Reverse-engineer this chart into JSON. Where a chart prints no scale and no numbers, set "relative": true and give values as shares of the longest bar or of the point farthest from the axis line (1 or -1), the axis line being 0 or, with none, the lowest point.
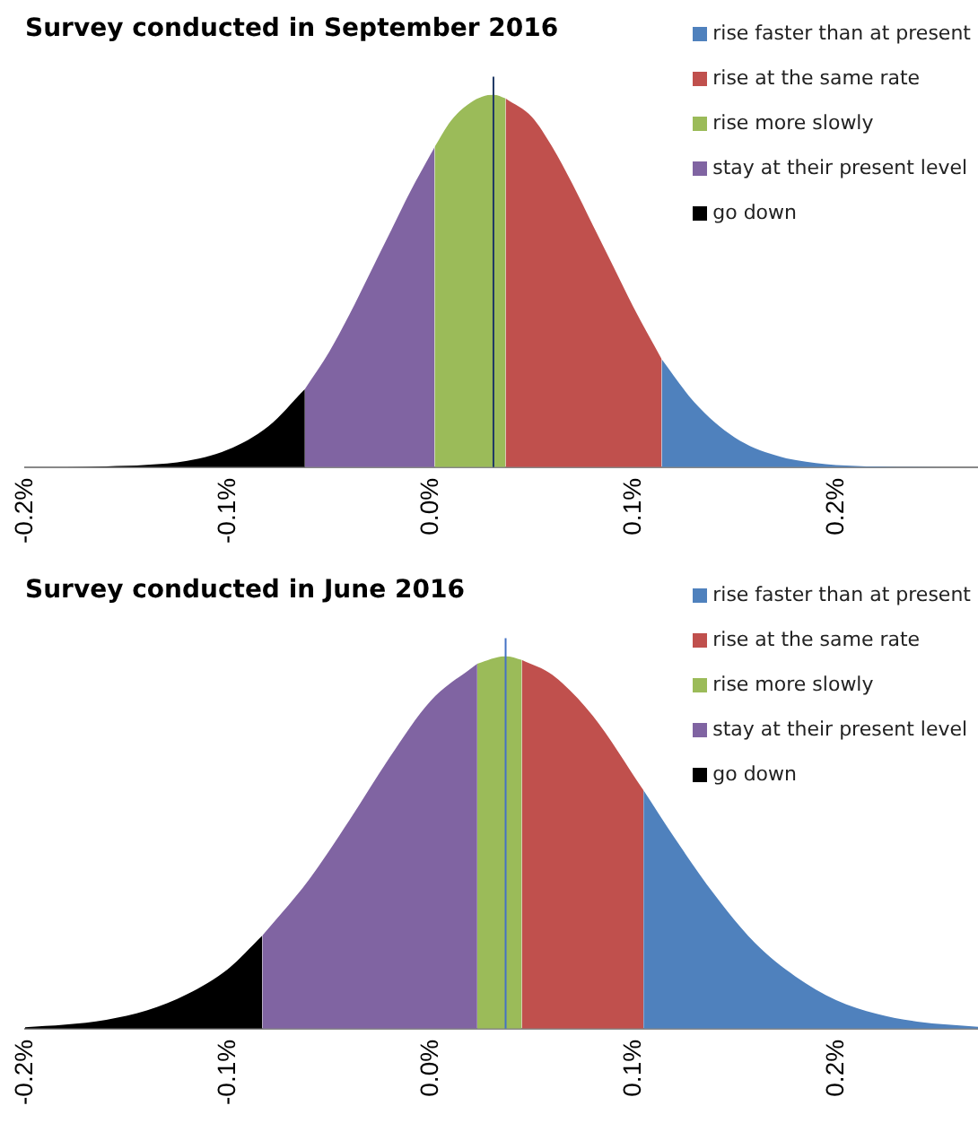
{
  "chart_data": [
    {
      "type": "area",
      "title": "Survey conducted in September 2016",
      "relative": true,
      "legend": "top right",
      "marker": "none",
      "grid": false,
      "xlim": [
        -0.2,
        0.27
      ],
      "xticks": [
        {
          "value": -0.2,
          "label": "-0.2%"
        },
        {
          "value": -0.1,
          "label": "-0.1%"
        },
        {
          "value": 0,
          "label": "0.0%"
        },
        {
          "value": 0.1,
          "label": "0.1%"
        },
        {
          "value": 0.2,
          "label": "0.2%"
        }
      ],
      "ref_lines": [
        {
          "axis": "x",
          "value": 0.031,
          "color": "#1f3864"
        }
      ],
      "series": [
        {
          "name": "rise faster than at present",
          "color": "#4f81bd",
          "x": [
            0.114,
            0.13,
            0.15,
            0.17,
            0.19,
            0.21,
            0.23,
            0.27
          ],
          "values": [
            0.29,
            0.175,
            0.08,
            0.032,
            0.011,
            0.003,
            0.001,
            0
          ]
        },
        {
          "name": "rise at the same rate",
          "color": "#c0504d",
          "x": [
            0.037,
            0.05,
            0.06,
            0.07,
            0.08,
            0.09,
            0.1,
            0.114
          ],
          "values": [
            0.99,
            0.94,
            0.86,
            0.76,
            0.65,
            0.54,
            0.43,
            0.29
          ]
        },
        {
          "name": "rise more slowly",
          "color": "#9bbb59",
          "x": [
            0.002,
            0.01,
            0.02,
            0.031,
            0.037
          ],
          "values": [
            0.86,
            0.93,
            0.98,
            1,
            0.99
          ]
        },
        {
          "name": "stay at their present level",
          "color": "#8064a2",
          "x": [
            -0.062,
            -0.05,
            -0.04,
            -0.03,
            -0.02,
            -0.01,
            0,
            0.002
          ],
          "values": [
            0.21,
            0.31,
            0.41,
            0.52,
            0.63,
            0.74,
            0.84,
            0.86
          ]
        },
        {
          "name": "go down",
          "color": "#000000",
          "x": [
            -0.2,
            -0.18,
            -0.16,
            -0.14,
            -0.12,
            -0.1,
            -0.08,
            -0.062
          ],
          "values": [
            0,
            0,
            0.002,
            0.006,
            0.017,
            0.047,
            0.11,
            0.21
          ]
        }
      ]
    },
    {
      "type": "area",
      "title": "Survey conducted in June 2016",
      "relative": true,
      "legend": "top right",
      "marker": "none",
      "grid": false,
      "xlim": [
        -0.2,
        0.27
      ],
      "xticks": [
        {
          "value": -0.2,
          "label": "-0.2%"
        },
        {
          "value": -0.1,
          "label": "-0.1%"
        },
        {
          "value": 0,
          "label": "0.0%"
        },
        {
          "value": 0.1,
          "label": "0.1%"
        },
        {
          "value": 0.2,
          "label": "0.2%"
        }
      ],
      "ref_lines": [
        {
          "axis": "x",
          "value": 0.037,
          "color": "#4472c4"
        }
      ],
      "series": [
        {
          "name": "rise faster than at present",
          "color": "#4f81bd",
          "x": [
            0.105,
            0.12,
            0.14,
            0.16,
            0.18,
            0.2,
            0.22,
            0.24,
            0.27
          ],
          "values": [
            0.64,
            0.515,
            0.36,
            0.23,
            0.14,
            0.077,
            0.04,
            0.019,
            0.005
          ]
        },
        {
          "name": "rise at the same rate",
          "color": "#c0504d",
          "x": [
            0.045,
            0.06,
            0.08,
            0.105
          ],
          "values": [
            0.99,
            0.95,
            0.84,
            0.64
          ]
        },
        {
          "name": "rise more slowly",
          "color": "#9bbb59",
          "x": [
            0.023,
            0.037,
            0.045
          ],
          "values": [
            0.98,
            1,
            0.99
          ]
        },
        {
          "name": "stay at their present level",
          "color": "#8064a2",
          "x": [
            -0.083,
            -0.06,
            -0.04,
            -0.02,
            0,
            0.023
          ],
          "values": [
            0.25,
            0.4,
            0.56,
            0.73,
            0.88,
            0.98
          ]
        },
        {
          "name": "go down",
          "color": "#000000",
          "x": [
            -0.2,
            -0.18,
            -0.16,
            -0.14,
            -0.12,
            -0.1,
            -0.083
          ],
          "values": [
            0.004,
            0.011,
            0.024,
            0.049,
            0.093,
            0.16,
            0.25
          ]
        }
      ]
    }
  ]
}
